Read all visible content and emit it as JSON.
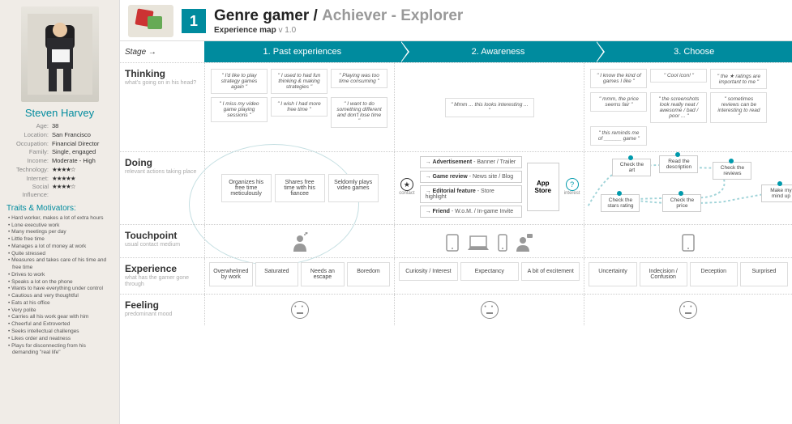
{
  "persona": {
    "name": "Steven Harvey",
    "attrs": [
      {
        "k": "Age:",
        "v": "38"
      },
      {
        "k": "Location:",
        "v": "San Francisco"
      },
      {
        "k": "Occupation:",
        "v": "Financial Director"
      },
      {
        "k": "Family:",
        "v": "Single, engaged"
      },
      {
        "k": "Income:",
        "v": "Moderate - High"
      },
      {
        "k": "Technology:",
        "v": "★★★★☆",
        "stars": true
      },
      {
        "k": "Internet:",
        "v": "★★★★★",
        "stars": true
      },
      {
        "k": "Social Influence:",
        "v": "★★★★☆",
        "stars": true
      }
    ],
    "traits_h": "Traits & Motivators:",
    "traits": [
      "Hard worker, makes a lot of extra hours",
      "Lone executive work",
      "Many meetings per day",
      "Little free time",
      "Manages a lot of money at work",
      "Quite stressed",
      "Measures and takes care of his time and free time",
      "Drives to work",
      "Speaks a lot on the phone",
      "Wants to have everything under control",
      "Cautious and very thoughtful",
      "Eats at his office",
      "Very polite",
      "Carries all his work gear with him",
      "Cheerful and Extroverted",
      "Seeks intellectual challenges",
      "Likes order and neatness",
      "Plays for disconnecting from his demanding \"real life\""
    ]
  },
  "header": {
    "badge": "1",
    "title1": "Genre gamer /",
    "title2": "Achiever - Explorer",
    "sub": "Experience map",
    "ver": "v 1.0"
  },
  "stages": {
    "label": "Stage →",
    "cols": [
      "1. Past experiences",
      "2. Awareness",
      "3. Choose"
    ]
  },
  "rows": {
    "thinking": {
      "h": "Thinking",
      "s": "what's going on in his head?"
    },
    "doing": {
      "h": "Doing",
      "s": "relevant actions taking place"
    },
    "touchpoint": {
      "h": "Touchpoint",
      "s": "usual contact medium"
    },
    "experience": {
      "h": "Experience",
      "s": "what has the gamer gone through"
    },
    "feeling": {
      "h": "Feeling",
      "s": "predominant mood"
    }
  },
  "thinking": {
    "col1": [
      "\" I'd like to play strategy games again \"",
      "\" I used to had fun thinking & making strategies \"",
      "\" Playing was too time consuming \"",
      "\" I miss my video game playing sessions \"",
      "\" I wish I had more free time \"",
      "\" I want to do something different and don't lose time \""
    ],
    "col2": [
      "\" Mmm ... this looks interesting ... \""
    ],
    "col3": [
      "\" I know the kind of games I like \"",
      "\" Cool icon! \"",
      "\" the ★ ratings are important to me \"",
      "\" mmm, the price seems fair \"",
      "\" the screenshots look really neat / awesome / bad / poor ... \"",
      "\" sometimes reviews can be interesting to read \"",
      "\" this reminds me of ______ game \""
    ]
  },
  "doing": {
    "col1": [
      "Organizes his free time meticulously",
      "Shares free time with his fiancee",
      "Seldomly plays video games"
    ],
    "contact": "contact",
    "col2": [
      {
        "b": "Advertisement",
        "t": " - Banner / Trailer"
      },
      {
        "b": "Game review",
        "t": " - News site / Blog"
      },
      {
        "b": "Editorial feature",
        "t": " - Store highlight"
      },
      {
        "b": "Friend",
        "t": " - W.o.M. / In-game Invite"
      }
    ],
    "appstore": "App Store",
    "interest": "interest",
    "col3_nodes": [
      "Check the art",
      "Read the description",
      "Check the reviews",
      "Check the stars rating",
      "Check the price",
      "Make my mind up"
    ]
  },
  "experience": {
    "col1": [
      "Overwhelmed by work",
      "Saturated",
      "Needs an escape",
      "Boredom"
    ],
    "col2": [
      "Curiosity / Interest",
      "Expectancy",
      "A bit of excitement"
    ],
    "col3": [
      "Uncertainty",
      "Indecision / Confusion",
      "Deception",
      "Surprised"
    ]
  },
  "colors": {
    "teal": "#008b9e",
    "star": "#f5a623",
    "border": "#dddddd",
    "text": "#444444"
  }
}
